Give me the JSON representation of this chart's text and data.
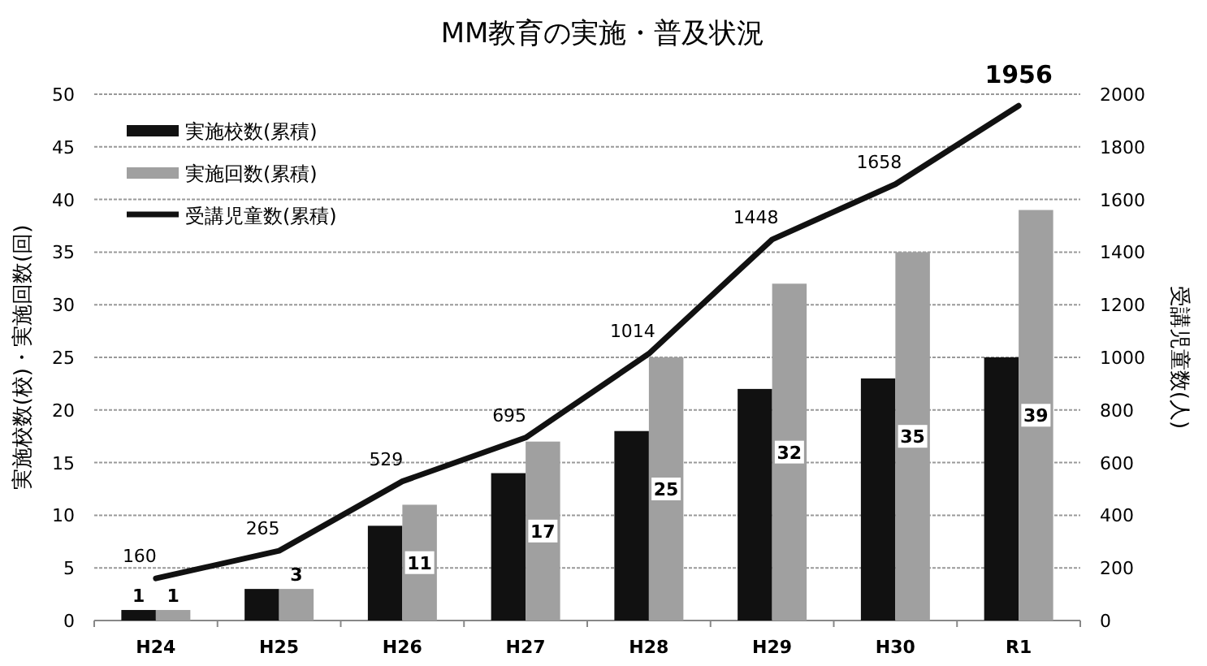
{
  "chart_data": {
    "type": "bar",
    "title": "MM教育の実施・普及状況",
    "ylabel": "実施校数(校)・実施回数(回)",
    "y2label": "受講児童数(人)",
    "categories": [
      "H24",
      "H25",
      "H26",
      "H27",
      "H28",
      "H29",
      "H30",
      "R1"
    ],
    "series": [
      {
        "name": "実施校数(累積)",
        "color": "#111111",
        "values": [
          1,
          3,
          9,
          14,
          18,
          22,
          23,
          25
        ],
        "value_labels": [
          "1",
          null,
          null,
          null,
          null,
          null,
          null,
          null
        ]
      },
      {
        "name": "実施回数(累積)",
        "color": "#a0a0a0",
        "values": [
          1,
          3,
          11,
          17,
          25,
          32,
          35,
          39
        ],
        "value_labels": [
          "1",
          "3",
          "11",
          "17",
          "25",
          "32",
          "35",
          "39"
        ]
      },
      {
        "name": "受講児童数(累積)",
        "type": "line",
        "axis": "y2",
        "color": "#111111",
        "values": [
          160,
          265,
          529,
          695,
          1014,
          1448,
          1658,
          1956
        ],
        "value_labels": [
          "160",
          "265",
          "529",
          "695",
          "1014",
          "1448",
          "1658",
          "1956"
        ]
      }
    ],
    "ylim": [
      0,
      50
    ],
    "yticks": [
      0,
      5,
      10,
      15,
      20,
      25,
      30,
      35,
      40,
      45,
      50
    ],
    "y2lim": [
      0,
      2000
    ],
    "y2ticks": [
      0,
      200,
      400,
      600,
      800,
      1000,
      1200,
      1400,
      1600,
      1800,
      2000
    ],
    "grid": "y",
    "legend": "top left"
  }
}
